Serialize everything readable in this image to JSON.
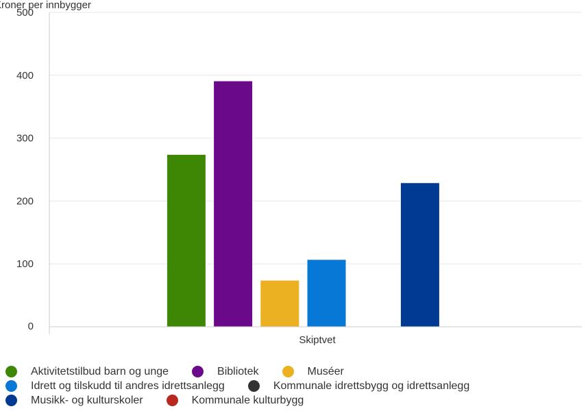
{
  "chart_data": {
    "type": "bar",
    "ylabel": "Kroner per innbygger",
    "categories": [
      "Skiptvet"
    ],
    "ylim": [
      0,
      500
    ],
    "yticks": [
      0,
      100,
      200,
      300,
      400,
      500
    ],
    "grid": true,
    "legend_position": "bottom",
    "series": [
      {
        "name": "Aktivitetstilbud barn og unge",
        "color": "#3d8705",
        "values": [
          274
        ]
      },
      {
        "name": "Bibliotek",
        "color": "#6a0a8a",
        "values": [
          391
        ]
      },
      {
        "name": "Muséer",
        "color": "#ecb122",
        "values": [
          74
        ]
      },
      {
        "name": "Idrett og tilskudd til andres idrettsanlegg",
        "color": "#0778d6",
        "values": [
          107
        ]
      },
      {
        "name": "Kommunale idrettsbygg og idrettsanlegg",
        "color": "#333333",
        "values": [
          0
        ]
      },
      {
        "name": "Musikk- og kulturskoler",
        "color": "#003a92",
        "values": [
          229
        ]
      },
      {
        "name": "Kommunale kulturbygg",
        "color": "#b7291f",
        "values": [
          0
        ]
      }
    ]
  },
  "legend_rows": [
    [
      0,
      1,
      2
    ],
    [
      3,
      4
    ],
    [
      5,
      6
    ]
  ]
}
